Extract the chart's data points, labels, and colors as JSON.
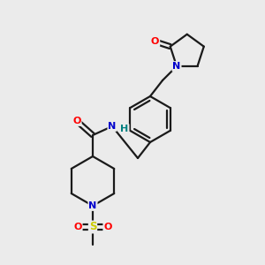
{
  "background_color": "#ebebeb",
  "bond_color": "#1a1a1a",
  "atom_colors": {
    "N": "#0000cc",
    "O": "#ff0000",
    "S": "#cccc00",
    "H": "#008080",
    "C": "#1a1a1a"
  },
  "figsize": [
    3.0,
    3.0
  ],
  "dpi": 100,
  "bond_lw": 1.6
}
